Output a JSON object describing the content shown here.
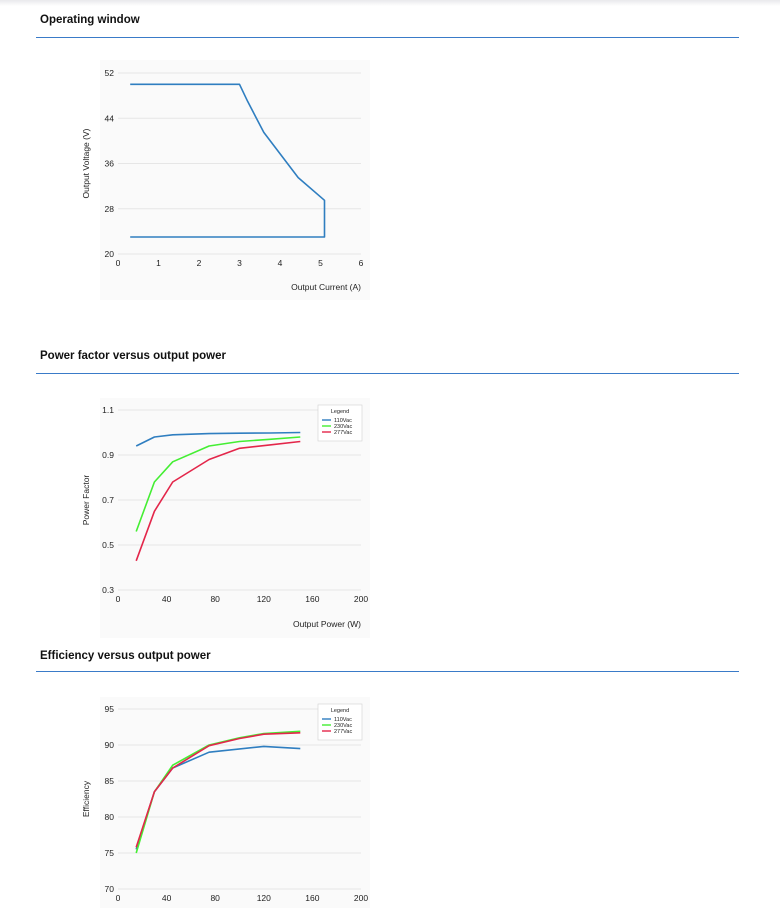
{
  "sections": [
    {
      "title": "Operating window"
    },
    {
      "title": "Power factor versus output power"
    },
    {
      "title": "Efficiency versus output power"
    }
  ],
  "chart_data": [
    {
      "type": "line",
      "title": "Operating window",
      "xlabel": "Output Current (A)",
      "ylabel": "Output Voltage (V)",
      "xlim": [
        0,
        6
      ],
      "ylim": [
        20,
        52
      ],
      "xticks": [
        0,
        1,
        2,
        3,
        4,
        5,
        6
      ],
      "yticks": [
        20,
        28,
        36,
        44,
        52
      ],
      "grid": "horizontal",
      "series": [
        {
          "color": "#2f7ec0",
          "x": [
            0.3,
            0.3,
            3.0,
            3.2,
            3.6,
            4.45,
            5.1,
            5.1,
            0.3
          ],
          "y": [
            50,
            50,
            50,
            47,
            41.5,
            33.5,
            29.5,
            23,
            23
          ]
        }
      ]
    },
    {
      "type": "line",
      "title": "Power factor versus output power",
      "xlabel": "Output Power (W)",
      "ylabel": "Power Factor",
      "xlim": [
        0,
        200
      ],
      "ylim": [
        0.3,
        1.1
      ],
      "xticks": [
        0,
        40,
        80,
        120,
        160,
        200
      ],
      "yticks": [
        0.3,
        0.5,
        0.7,
        0.9,
        1.1
      ],
      "tick_labels": [
        "0.3",
        "0.5",
        "0.7",
        "0.9",
        "1.1"
      ],
      "grid": "horizontal",
      "legend": {
        "title": "Legend",
        "position": "top-right"
      },
      "series": [
        {
          "name": "110Vac",
          "color": "#2f7ec0",
          "x": [
            15,
            30,
            45,
            75,
            100,
            125,
            150
          ],
          "y": [
            0.94,
            0.98,
            0.99,
            0.995,
            0.997,
            0.998,
            1.0
          ]
        },
        {
          "name": "230Vac",
          "color": "#44ee33",
          "x": [
            15,
            30,
            45,
            75,
            100,
            125,
            150
          ],
          "y": [
            0.56,
            0.78,
            0.87,
            0.94,
            0.96,
            0.97,
            0.98
          ]
        },
        {
          "name": "277Vac",
          "color": "#e3264a",
          "x": [
            15,
            30,
            45,
            75,
            100,
            125,
            150
          ],
          "y": [
            0.43,
            0.65,
            0.78,
            0.88,
            0.93,
            0.945,
            0.96
          ]
        }
      ]
    },
    {
      "type": "line",
      "title": "Efficiency versus output power",
      "xlabel": "",
      "ylabel": "Efficiency",
      "xlim": [
        0,
        200
      ],
      "ylim": [
        70,
        95
      ],
      "xticks": [
        0,
        40,
        80,
        120,
        160,
        200
      ],
      "yticks": [
        70,
        75,
        80,
        85,
        90,
        95
      ],
      "grid": "horizontal",
      "legend": {
        "title": "Legend",
        "position": "top-right"
      },
      "series": [
        {
          "name": "110Vac",
          "color": "#2f7ec0",
          "x": [
            15,
            30,
            45,
            75,
            120,
            150
          ],
          "y": [
            75.5,
            83.5,
            86.8,
            89.0,
            89.8,
            89.5
          ]
        },
        {
          "name": "230Vac",
          "color": "#44ee33",
          "x": [
            15,
            30,
            45,
            75,
            100,
            120,
            150
          ],
          "y": [
            75.0,
            83.5,
            87.2,
            90.0,
            91.0,
            91.6,
            91.9
          ]
        },
        {
          "name": "277Vac",
          "color": "#e3264a",
          "x": [
            15,
            30,
            45,
            75,
            100,
            120,
            150
          ],
          "y": [
            75.8,
            83.5,
            86.8,
            89.9,
            90.9,
            91.5,
            91.7
          ]
        }
      ]
    }
  ]
}
